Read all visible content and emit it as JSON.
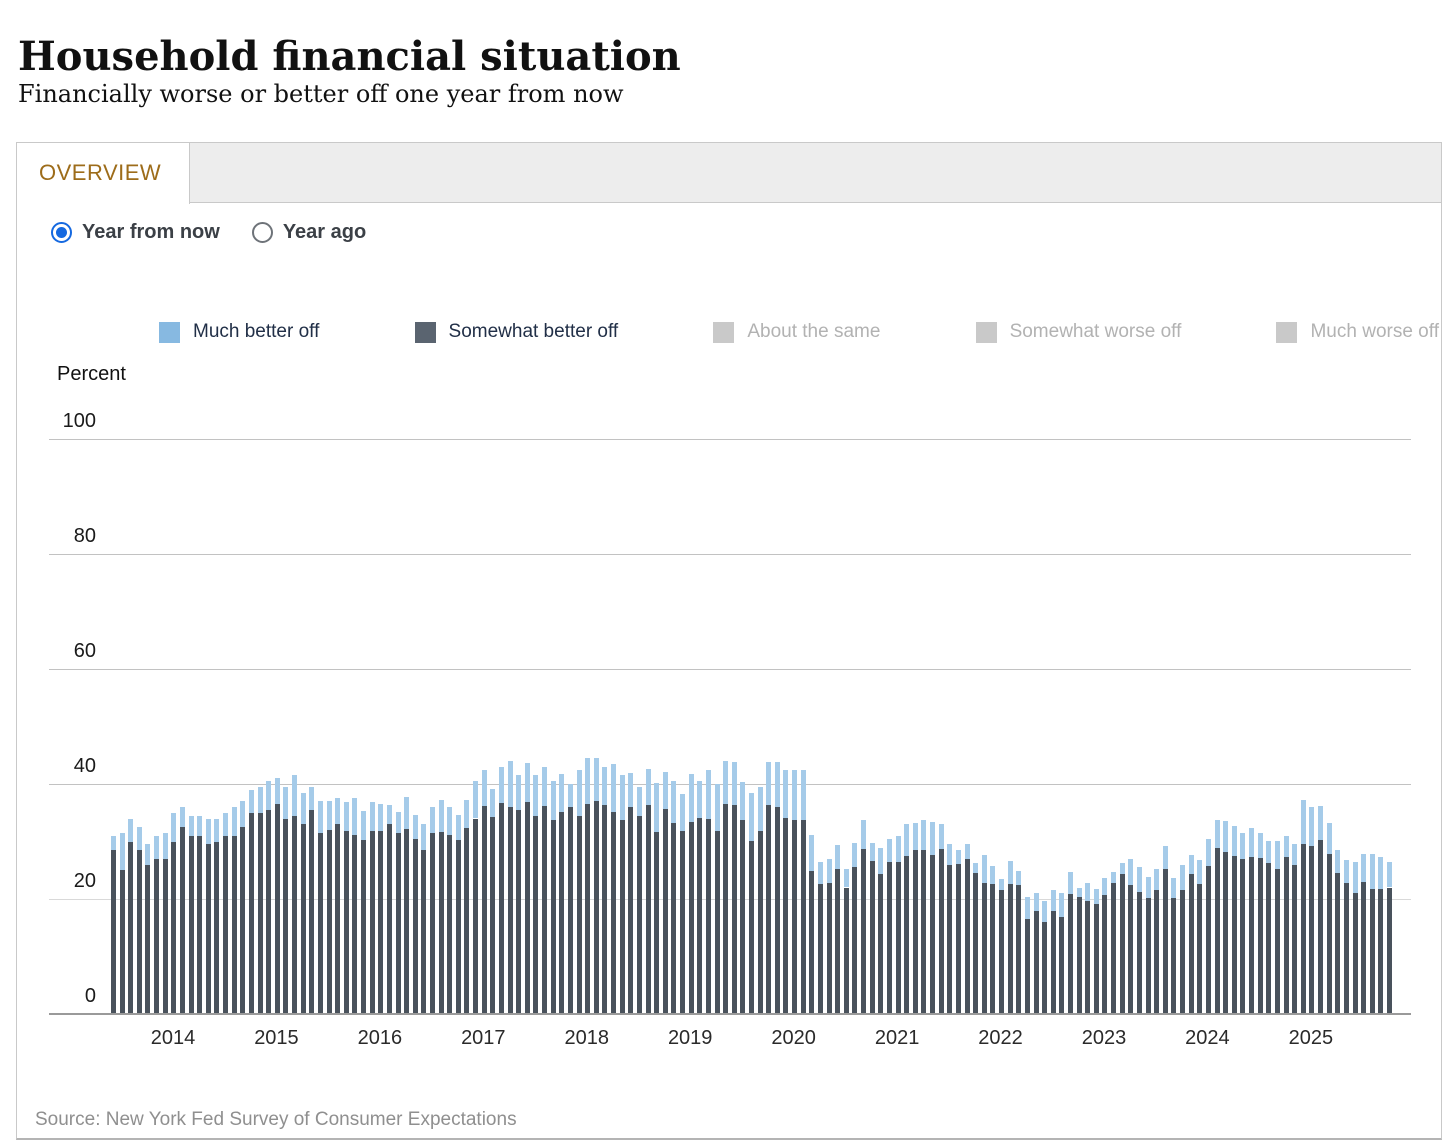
{
  "page": {
    "title": "Household financial situation",
    "subtitle": "Financially worse or better off one year from now"
  },
  "tabs": {
    "overview_label": "OVERVIEW"
  },
  "controls": {
    "radios": [
      {
        "label": "Year from now",
        "selected": true
      },
      {
        "label": "Year ago",
        "selected": false
      }
    ]
  },
  "legend": [
    {
      "label": "Much better off",
      "color": "#87b9e1",
      "active": true
    },
    {
      "label": "Somewhat better off",
      "color": "#5a6470",
      "active": true
    },
    {
      "label": "About the same",
      "color": "#c9c9c9",
      "active": false
    },
    {
      "label": "Somewhat worse off",
      "color": "#c9c9c9",
      "active": false
    },
    {
      "label": "Much worse off",
      "color": "#c9c9c9",
      "active": false
    }
  ],
  "chart_data": {
    "type": "bar",
    "stacked": true,
    "unit_label": "Percent",
    "start_month": "2013-06",
    "frequency": "monthly",
    "ylim": [
      0,
      100
    ],
    "yticks": [
      0,
      20,
      40,
      60,
      80,
      100
    ],
    "x_tick_years": [
      "2014",
      "2015",
      "2016",
      "2017",
      "2018",
      "2019",
      "2020",
      "2021",
      "2022",
      "2023",
      "2024",
      "2025"
    ],
    "grid": true,
    "series": [
      {
        "name": "Somewhat better off",
        "color": "#49525c",
        "values": [
          28.5,
          25,
          30,
          28.5,
          26,
          27,
          27,
          30,
          32.5,
          31,
          31,
          29.5,
          30,
          31,
          31,
          32.5,
          35,
          35,
          35.5,
          36.5,
          34,
          34.5,
          33,
          35.5,
          31.5,
          32,
          33,
          31.8,
          31.2,
          30.2,
          31.8,
          31.9,
          33,
          31.5,
          32.2,
          30.5,
          28.6,
          31.4,
          31.7,
          31.1,
          30.2,
          32.3,
          34,
          36.2,
          34.2,
          36.7,
          36,
          35.4,
          36.9,
          34.4,
          36.2,
          33.7,
          35.2,
          36,
          34.5,
          36.6,
          37,
          36.4,
          35.2,
          33.8,
          36,
          34.4,
          36.4,
          31.7,
          35.6,
          33.3,
          31.9,
          33.4,
          34.1,
          33.9,
          31.9,
          36.6,
          36.3,
          33.8,
          30.1,
          31.9,
          36.4,
          36,
          34.1,
          33.7,
          33.7,
          24.9,
          22.6,
          22.8,
          25.2,
          22,
          25.5,
          28.7,
          26.6,
          24.4,
          26.5,
          26.5,
          27.5,
          28.5,
          28.6,
          27.6,
          28.7,
          25.9,
          26.1,
          27,
          24.5,
          22.8,
          22.6,
          21.5,
          22.6,
          22.5,
          16.6,
          17.9,
          16,
          18,
          16.8,
          20.9,
          20.3,
          19.7,
          19.2,
          20.7,
          22.8,
          24.4,
          22.4,
          21.2,
          20.2,
          21.5,
          25.3,
          20.1,
          21.6,
          24.4,
          22.6,
          25.7,
          28.9,
          28.1,
          27.5,
          27,
          27.3,
          27.1,
          26.3,
          25.3,
          27.3,
          25.9,
          29.5,
          29.2,
          30.2,
          27.8,
          24.6,
          22.7,
          21.1,
          22.9,
          21.7,
          21.8,
          22
        ]
      },
      {
        "name": "Much better off",
        "color": "#a5cbe9",
        "values": [
          2.5,
          6.5,
          4,
          4,
          3.5,
          4,
          4.5,
          5,
          3.5,
          3.5,
          3.5,
          4.5,
          4,
          4,
          5,
          4.5,
          4,
          4.5,
          5,
          4.5,
          5.5,
          7,
          5.5,
          4,
          5.5,
          5,
          4.5,
          5,
          6.3,
          5.1,
          5,
          4.7,
          3.4,
          3.7,
          5.6,
          4.1,
          4.4,
          4.6,
          5.6,
          4.9,
          4.4,
          5,
          6.6,
          6.3,
          5,
          6.2,
          8,
          6.2,
          6.7,
          7.2,
          6.7,
          6.9,
          6.5,
          4,
          8,
          7.9,
          7.5,
          6.6,
          8.3,
          7.8,
          6,
          5,
          6.2,
          8.4,
          6.5,
          7.3,
          6.4,
          8.4,
          6.4,
          8.5,
          8.1,
          7.4,
          7.6,
          6.6,
          8.4,
          7.6,
          7.5,
          7.8,
          8.4,
          8.8,
          8.8,
          6.2,
          3.8,
          4.1,
          4.2,
          3.3,
          4.2,
          5,
          3.2,
          4.5,
          3.9,
          4.4,
          5.5,
          4.8,
          5.1,
          5.8,
          4.4,
          3.6,
          2.4,
          2.5,
          1.8,
          4.9,
          3.1,
          2,
          4,
          2.3,
          3.8,
          3.2,
          3.6,
          3.5,
          4.3,
          3.8,
          1.7,
          3.1,
          2.5,
          2.9,
          1.9,
          1.9,
          4.6,
          4.3,
          3.7,
          3.7,
          3.9,
          3.6,
          4.3,
          3.3,
          4.1,
          4.8,
          4.8,
          5.5,
          5.2,
          4.4,
          5.1,
          4.4,
          3.8,
          4.8,
          3.7,
          3.7,
          7.8,
          6.8,
          6,
          5.5,
          3.9,
          4,
          5.3,
          4.9,
          6.2,
          5.5,
          4.4
        ]
      }
    ]
  },
  "source": "Source: New York Fed Survey of Consumer Expectations"
}
